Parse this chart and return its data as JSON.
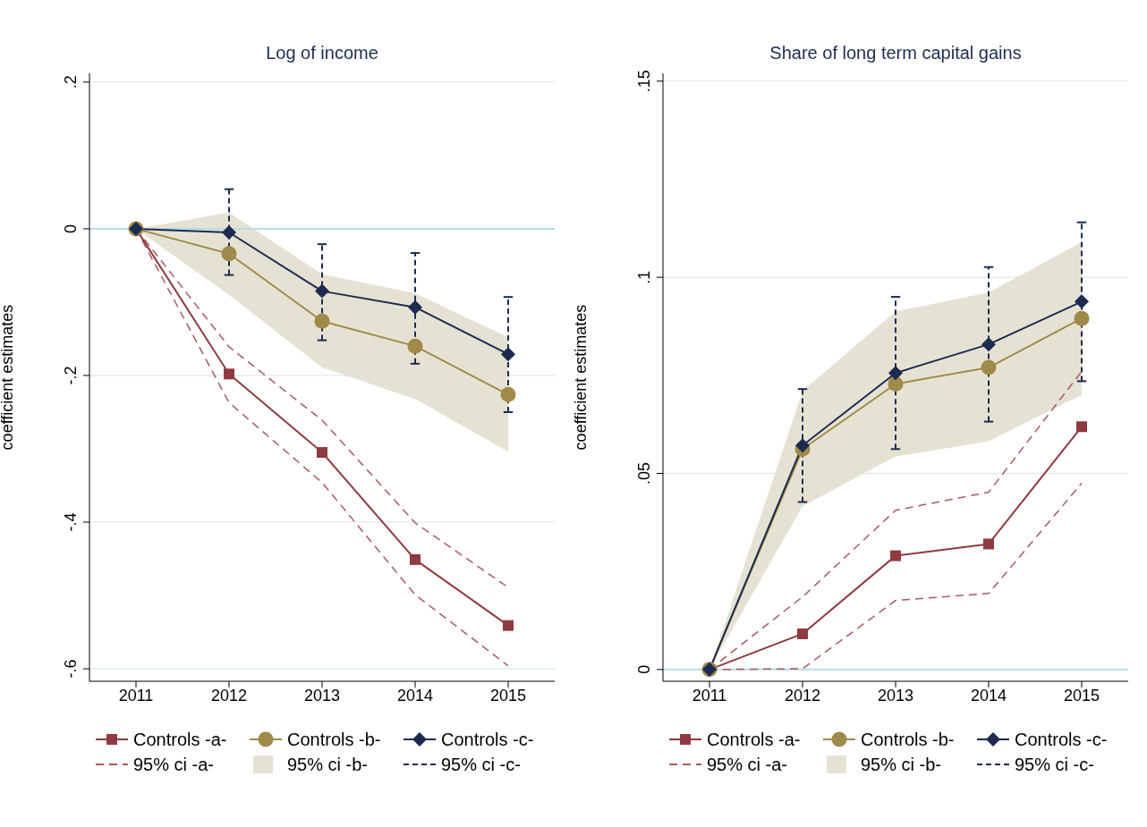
{
  "chart_data": [
    {
      "type": "line",
      "title": "Log of income",
      "ylabel": "coefficient estimates",
      "annotations": [
        "95% ci -b-",
        "95% ci -c-"
      ],
      "categories": [
        "2011",
        "2012",
        "2013",
        "2014",
        "2015"
      ],
      "ylim": [
        -0.617,
        0.212
      ],
      "yticks": [
        {
          "value": 0.2,
          "label": ".2"
        },
        0,
        {
          "value": -0.2,
          "label": "-.2"
        },
        {
          "value": -0.4,
          "label": "-.4"
        },
        {
          "value": -0.6,
          "label": "-.6"
        }
      ],
      "grid": "y",
      "legend": "bottom",
      "ref_lines": [
        {
          "axis": "y",
          "value": 0,
          "color": "#b9dce6"
        }
      ],
      "series": [
        {
          "name": "Controls -a-",
          "type": "line",
          "marker": "square",
          "color": "#8e3a40",
          "values": [
            0,
            -0.198,
            -0.305,
            -0.451,
            -0.541
          ]
        },
        {
          "name": "Controls -b-",
          "type": "line",
          "marker": "circle",
          "color": "#a08a4a",
          "values": [
            0,
            -0.034,
            -0.126,
            -0.16,
            -0.226
          ],
          "lower": [
            0,
            -0.09,
            -0.189,
            -0.232,
            -0.304
          ],
          "upper": [
            0,
            0.022,
            -0.062,
            -0.088,
            -0.148
          ]
        },
        {
          "name": "Controls -c-",
          "type": "line",
          "marker": "diamond",
          "color": "#1c2b4f",
          "values": [
            0,
            -0.005,
            -0.085,
            -0.107,
            -0.171
          ],
          "errors": [
            null,
            [
              -0.063,
              0.054
            ],
            [
              -0.152,
              -0.021
            ],
            [
              -0.184,
              -0.033
            ],
            [
              -0.25,
              -0.093
            ]
          ]
        },
        {
          "name": "95% ci -a-",
          "type": "line",
          "line_style": "dashed",
          "color": "#a85a60",
          "values": [
            0,
            -0.161,
            -0.261,
            -0.401,
            -0.489
          ]
        },
        {
          "type": "line",
          "line_style": "dashed",
          "color": "#a85a60",
          "values": [
            0,
            -0.237,
            -0.346,
            -0.499,
            -0.596
          ]
        }
      ]
    },
    {
      "type": "line",
      "title": "Share of long term capital gains",
      "ylabel": "coefficient estimates",
      "annotations": [
        "95% ci -b-",
        "95% ci -c-"
      ],
      "categories": [
        "2011",
        "2012",
        "2013",
        "2014",
        "2015"
      ],
      "ylim": [
        -0.003,
        0.152
      ],
      "yticks": [
        0,
        {
          "value": 0.05,
          "label": ".05"
        },
        {
          "value": 0.1,
          "label": ".1"
        },
        {
          "value": 0.15,
          "label": ".15"
        }
      ],
      "grid": "y",
      "legend": "bottom",
      "ref_lines": [
        {
          "axis": "y",
          "value": 0,
          "color": "#b9dce6"
        }
      ],
      "series": [
        {
          "name": "Controls -a-",
          "type": "line",
          "marker": "square",
          "color": "#8e3a40",
          "values": [
            0,
            0.0091,
            0.029,
            0.032,
            0.0619
          ]
        },
        {
          "name": "Controls -b-",
          "type": "line",
          "marker": "circle",
          "color": "#a08a4a",
          "values": [
            0,
            0.0562,
            0.0728,
            0.077,
            0.0895
          ],
          "lower": [
            0,
            0.0416,
            0.0543,
            0.0582,
            0.07
          ],
          "upper": [
            0,
            0.071,
            0.0913,
            0.0961,
            0.109
          ]
        },
        {
          "name": "Controls -c-",
          "type": "line",
          "marker": "diamond",
          "color": "#1c2b4f",
          "values": [
            0,
            0.0571,
            0.0756,
            0.0829,
            0.0938
          ],
          "errors": [
            null,
            [
              0.0427,
              0.0715
            ],
            [
              0.0562,
              0.095
            ],
            [
              0.0632,
              0.1026
            ],
            [
              0.0735,
              0.114
            ]
          ]
        },
        {
          "name": "95% ci -a-",
          "type": "line",
          "line_style": "dashed",
          "color": "#a85a60",
          "values": [
            0,
            0.0185,
            0.0406,
            0.0452,
            0.076
          ]
        },
        {
          "type": "line",
          "line_style": "dashed",
          "color": "#a85a60",
          "values": [
            0,
            0.0002,
            0.0176,
            0.0194,
            0.0475
          ]
        }
      ]
    }
  ]
}
